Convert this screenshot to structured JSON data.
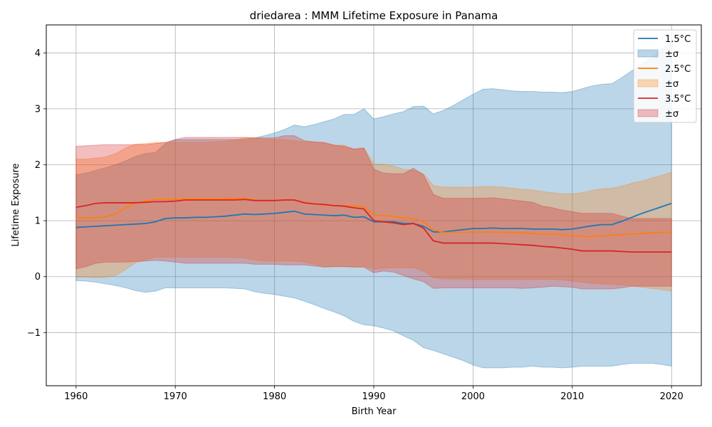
{
  "chart_data": {
    "type": "line",
    "title": "driedarea : MMM Lifetime Exposure in Panama",
    "xlabel": "Birth Year",
    "ylabel": "Lifetime Exposure",
    "xlim": [
      1957,
      2023
    ],
    "ylim": [
      -1.95,
      4.5
    ],
    "xticks": [
      1960,
      1970,
      1980,
      1990,
      2000,
      2010,
      2020
    ],
    "yticks": [
      -1,
      0,
      1,
      2,
      3,
      4
    ],
    "ytick_labels": [
      "−1",
      "0",
      "1",
      "2",
      "3",
      "4"
    ],
    "grid": true,
    "legend_position": "top-right",
    "x": [
      1960,
      1961,
      1962,
      1963,
      1964,
      1965,
      1966,
      1967,
      1968,
      1969,
      1970,
      1971,
      1972,
      1973,
      1974,
      1975,
      1976,
      1977,
      1978,
      1979,
      1980,
      1981,
      1982,
      1983,
      1984,
      1985,
      1986,
      1987,
      1988,
      1989,
      1990,
      1991,
      1992,
      1993,
      1994,
      1995,
      1996,
      1997,
      1998,
      1999,
      2000,
      2001,
      2002,
      2003,
      2004,
      2005,
      2006,
      2007,
      2008,
      2009,
      2010,
      2011,
      2012,
      2013,
      2014,
      2015,
      2016,
      2017,
      2018,
      2019,
      2020
    ],
    "series": [
      {
        "name": "1.5°C",
        "band_name": "±σ",
        "color": "#1f77b4",
        "band_color": "#1f77b4",
        "values": [
          0.88,
          0.89,
          0.9,
          0.91,
          0.92,
          0.93,
          0.94,
          0.95,
          0.98,
          1.04,
          1.05,
          1.05,
          1.06,
          1.06,
          1.07,
          1.08,
          1.1,
          1.12,
          1.11,
          1.12,
          1.13,
          1.15,
          1.17,
          1.12,
          1.11,
          1.1,
          1.09,
          1.1,
          1.06,
          1.07,
          0.98,
          0.98,
          0.98,
          0.95,
          0.95,
          0.9,
          0.8,
          0.8,
          0.82,
          0.84,
          0.86,
          0.86,
          0.87,
          0.86,
          0.86,
          0.86,
          0.85,
          0.85,
          0.85,
          0.84,
          0.85,
          0.88,
          0.91,
          0.93,
          0.93,
          0.99,
          1.06,
          1.13,
          1.19,
          1.25,
          1.31
        ],
        "upper": [
          1.82,
          1.85,
          1.9,
          1.95,
          2.0,
          2.07,
          2.15,
          2.2,
          2.22,
          2.38,
          2.45,
          2.45,
          2.45,
          2.45,
          2.45,
          2.45,
          2.45,
          2.45,
          2.48,
          2.52,
          2.57,
          2.63,
          2.71,
          2.68,
          2.72,
          2.77,
          2.82,
          2.9,
          2.9,
          3.0,
          2.82,
          2.86,
          2.91,
          2.95,
          3.04,
          3.05,
          2.91,
          2.97,
          3.06,
          3.16,
          3.26,
          3.35,
          3.36,
          3.34,
          3.32,
          3.31,
          3.31,
          3.3,
          3.3,
          3.29,
          3.31,
          3.36,
          3.41,
          3.44,
          3.45,
          3.56,
          3.68,
          3.8,
          3.93,
          4.07,
          4.2
        ],
        "lower": [
          -0.07,
          -0.08,
          -0.1,
          -0.13,
          -0.16,
          -0.2,
          -0.25,
          -0.28,
          -0.26,
          -0.2,
          -0.2,
          -0.2,
          -0.2,
          -0.2,
          -0.2,
          -0.2,
          -0.21,
          -0.22,
          -0.27,
          -0.3,
          -0.32,
          -0.35,
          -0.38,
          -0.44,
          -0.5,
          -0.57,
          -0.63,
          -0.7,
          -0.8,
          -0.86,
          -0.88,
          -0.92,
          -0.97,
          -1.06,
          -1.14,
          -1.27,
          -1.32,
          -1.38,
          -1.44,
          -1.5,
          -1.58,
          -1.63,
          -1.63,
          -1.63,
          -1.62,
          -1.62,
          -1.6,
          -1.62,
          -1.62,
          -1.63,
          -1.62,
          -1.6,
          -1.6,
          -1.6,
          -1.6,
          -1.57,
          -1.55,
          -1.55,
          -1.55,
          -1.57,
          -1.6
        ]
      },
      {
        "name": "2.5°C",
        "band_name": "±σ",
        "color": "#ff7f0e",
        "band_color": "#ff7f0e",
        "values": [
          1.05,
          1.05,
          1.05,
          1.07,
          1.12,
          1.23,
          1.32,
          1.35,
          1.38,
          1.38,
          1.38,
          1.39,
          1.39,
          1.39,
          1.39,
          1.39,
          1.4,
          1.4,
          1.37,
          1.36,
          1.36,
          1.37,
          1.37,
          1.33,
          1.3,
          1.28,
          1.27,
          1.27,
          1.26,
          1.25,
          1.1,
          1.09,
          1.08,
          1.05,
          1.04,
          0.98,
          0.84,
          0.79,
          0.79,
          0.79,
          0.8,
          0.8,
          0.8,
          0.79,
          0.79,
          0.78,
          0.77,
          0.76,
          0.76,
          0.75,
          0.73,
          0.72,
          0.72,
          0.73,
          0.74,
          0.75,
          0.76,
          0.77,
          0.78,
          0.79,
          0.8
        ],
        "upper": [
          2.1,
          2.1,
          2.12,
          2.14,
          2.2,
          2.3,
          2.37,
          2.38,
          2.4,
          2.4,
          2.4,
          2.4,
          2.4,
          2.4,
          2.41,
          2.42,
          2.44,
          2.48,
          2.48,
          2.46,
          2.45,
          2.45,
          2.43,
          2.41,
          2.4,
          2.39,
          2.35,
          2.35,
          2.28,
          2.3,
          2.02,
          2.01,
          1.98,
          1.92,
          1.9,
          1.84,
          1.63,
          1.6,
          1.6,
          1.6,
          1.6,
          1.61,
          1.61,
          1.6,
          1.58,
          1.56,
          1.55,
          1.52,
          1.5,
          1.48,
          1.48,
          1.5,
          1.54,
          1.57,
          1.58,
          1.62,
          1.67,
          1.71,
          1.76,
          1.81,
          1.87
        ],
        "lower": [
          -0.01,
          -0.01,
          -0.02,
          -0.01,
          0.02,
          0.13,
          0.25,
          0.3,
          0.35,
          0.35,
          0.35,
          0.35,
          0.35,
          0.35,
          0.35,
          0.35,
          0.34,
          0.33,
          0.3,
          0.28,
          0.28,
          0.28,
          0.28,
          0.26,
          0.22,
          0.18,
          0.18,
          0.18,
          0.18,
          0.18,
          0.14,
          0.15,
          0.16,
          0.16,
          0.16,
          0.1,
          -0.02,
          -0.04,
          -0.04,
          -0.04,
          -0.05,
          -0.05,
          -0.05,
          -0.05,
          -0.05,
          -0.05,
          -0.05,
          -0.05,
          -0.05,
          -0.06,
          -0.08,
          -0.1,
          -0.12,
          -0.13,
          -0.14,
          -0.15,
          -0.17,
          -0.19,
          -0.21,
          -0.23,
          -0.26
        ]
      },
      {
        "name": "3.5°C",
        "band_name": "±σ",
        "color": "#d62728",
        "band_color": "#d62728",
        "values": [
          1.24,
          1.27,
          1.31,
          1.32,
          1.32,
          1.32,
          1.32,
          1.33,
          1.34,
          1.34,
          1.35,
          1.37,
          1.37,
          1.37,
          1.37,
          1.37,
          1.37,
          1.38,
          1.36,
          1.36,
          1.36,
          1.37,
          1.37,
          1.32,
          1.3,
          1.29,
          1.27,
          1.26,
          1.23,
          1.21,
          1.0,
          0.98,
          0.96,
          0.93,
          0.95,
          0.87,
          0.64,
          0.6,
          0.6,
          0.6,
          0.6,
          0.6,
          0.6,
          0.59,
          0.58,
          0.57,
          0.56,
          0.54,
          0.53,
          0.51,
          0.49,
          0.46,
          0.46,
          0.46,
          0.46,
          0.45,
          0.44,
          0.44,
          0.44,
          0.44,
          0.44
        ],
        "upper": [
          2.33,
          2.34,
          2.35,
          2.36,
          2.36,
          2.36,
          2.36,
          2.36,
          2.38,
          2.4,
          2.45,
          2.49,
          2.49,
          2.49,
          2.49,
          2.49,
          2.49,
          2.49,
          2.48,
          2.48,
          2.48,
          2.52,
          2.52,
          2.43,
          2.41,
          2.4,
          2.35,
          2.33,
          2.28,
          2.3,
          1.92,
          1.85,
          1.84,
          1.84,
          1.94,
          1.82,
          1.47,
          1.4,
          1.4,
          1.4,
          1.4,
          1.4,
          1.41,
          1.39,
          1.37,
          1.35,
          1.33,
          1.26,
          1.23,
          1.19,
          1.16,
          1.13,
          1.13,
          1.13,
          1.13,
          1.08,
          1.04,
          1.04,
          1.04,
          1.04,
          1.04
        ],
        "lower": [
          0.14,
          0.18,
          0.24,
          0.26,
          0.26,
          0.26,
          0.27,
          0.28,
          0.29,
          0.28,
          0.26,
          0.24,
          0.24,
          0.24,
          0.24,
          0.24,
          0.24,
          0.24,
          0.22,
          0.22,
          0.22,
          0.21,
          0.21,
          0.21,
          0.19,
          0.17,
          0.18,
          0.18,
          0.17,
          0.17,
          0.07,
          0.1,
          0.08,
          0.02,
          -0.04,
          -0.09,
          -0.21,
          -0.2,
          -0.2,
          -0.2,
          -0.2,
          -0.2,
          -0.2,
          -0.2,
          -0.2,
          -0.21,
          -0.2,
          -0.19,
          -0.17,
          -0.18,
          -0.19,
          -0.22,
          -0.22,
          -0.22,
          -0.22,
          -0.2,
          -0.17,
          -0.17,
          -0.17,
          -0.17,
          -0.17
        ]
      }
    ]
  }
}
